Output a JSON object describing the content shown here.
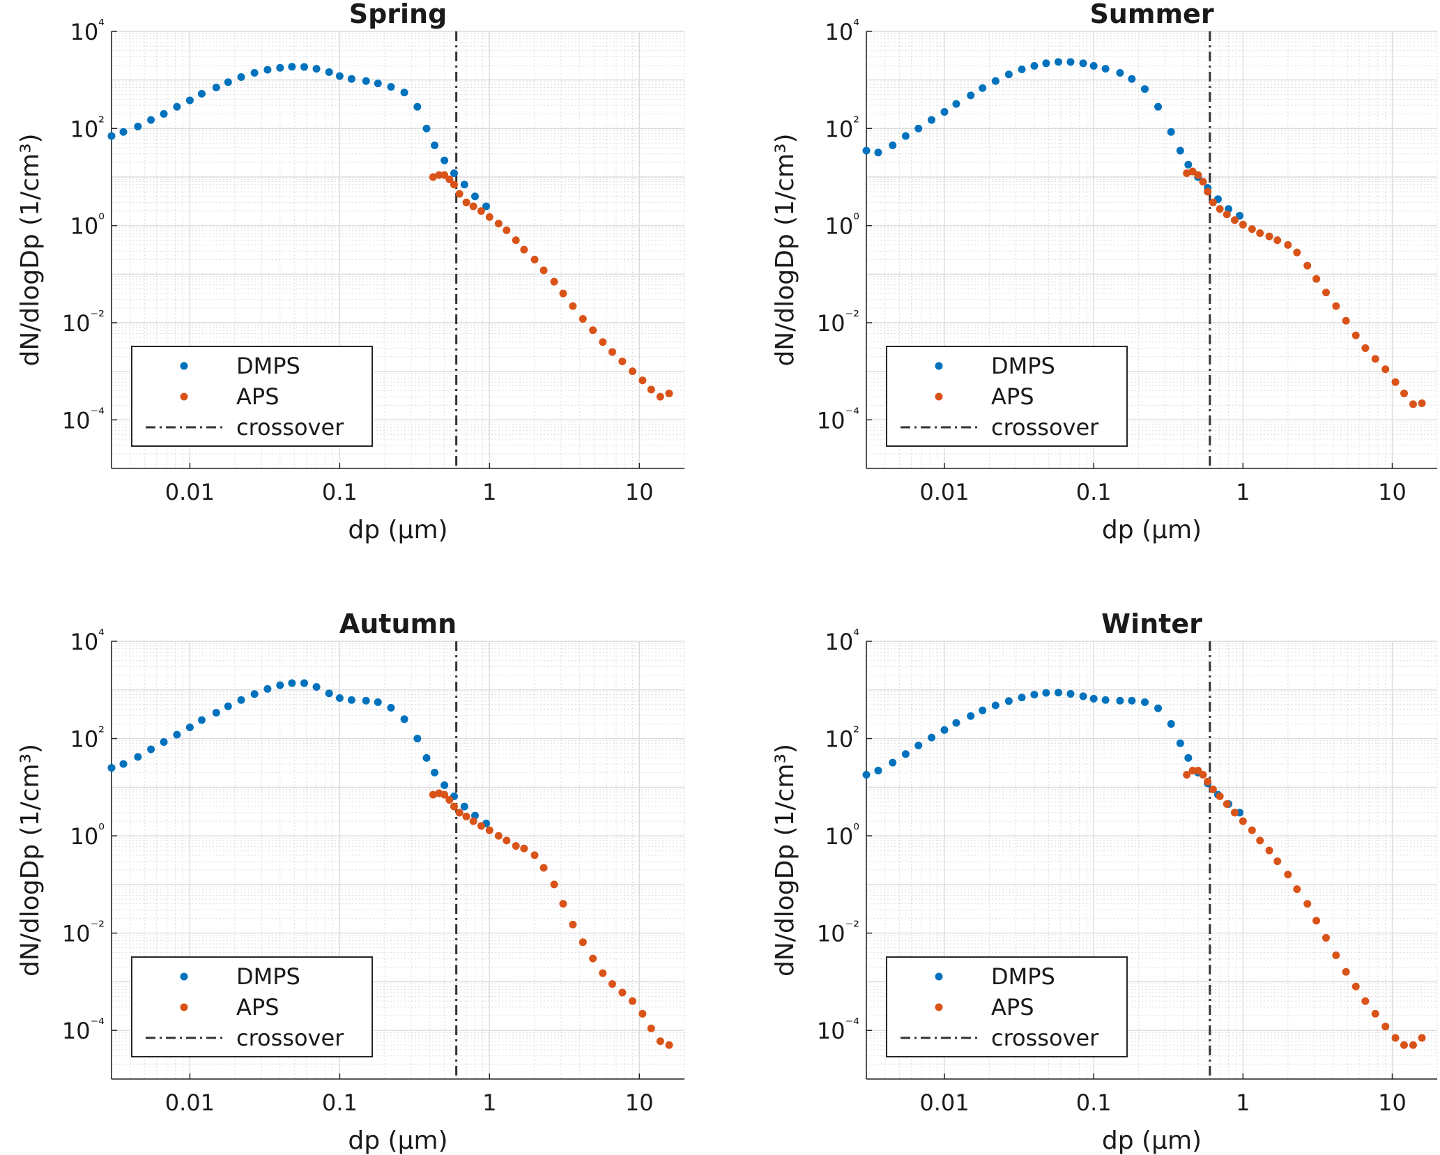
{
  "colors": {
    "dmps": "#0072BD",
    "aps": "#D95319",
    "crossover": "#333333",
    "grid": "#dcdcdc"
  },
  "chart_data": [
    {
      "type": "scatter",
      "title": "Spring",
      "xlabel": "dp (μm)",
      "ylabel": "dN/dlogDp (1/cm³)",
      "xscale": "log",
      "yscale": "log",
      "xlim": [
        0.003,
        20
      ],
      "ylim": [
        1e-05,
        10000
      ],
      "xticks": [
        "0.01",
        "0.1",
        "1",
        "10"
      ],
      "yticks": [
        "10⁴",
        "10²",
        "10⁰",
        "10⁻²",
        "10⁻⁴"
      ],
      "grid": true,
      "legend_position": "lower-left",
      "legend": [
        "DMPS",
        "APS",
        "crossover"
      ],
      "crossover_x": 0.6,
      "series": [
        {
          "name": "DMPS",
          "points": [
            [
              0.003,
              70
            ],
            [
              0.0036,
              85
            ],
            [
              0.0045,
              110
            ],
            [
              0.0055,
              150
            ],
            [
              0.0067,
              200
            ],
            [
              0.0082,
              280
            ],
            [
              0.01,
              380
            ],
            [
              0.012,
              520
            ],
            [
              0.015,
              700
            ],
            [
              0.018,
              900
            ],
            [
              0.022,
              1150
            ],
            [
              0.027,
              1400
            ],
            [
              0.033,
              1620
            ],
            [
              0.04,
              1780
            ],
            [
              0.048,
              1870
            ],
            [
              0.058,
              1850
            ],
            [
              0.07,
              1700
            ],
            [
              0.085,
              1450
            ],
            [
              0.1,
              1200
            ],
            [
              0.12,
              1050
            ],
            [
              0.15,
              950
            ],
            [
              0.18,
              850
            ],
            [
              0.22,
              720
            ],
            [
              0.27,
              550
            ],
            [
              0.33,
              280
            ],
            [
              0.38,
              100
            ],
            [
              0.43,
              45
            ],
            [
              0.5,
              22
            ],
            [
              0.58,
              12
            ],
            [
              0.68,
              7
            ],
            [
              0.8,
              4
            ],
            [
              0.95,
              2.5
            ]
          ]
        },
        {
          "name": "APS",
          "points": [
            [
              0.42,
              10
            ],
            [
              0.46,
              11
            ],
            [
              0.5,
              11
            ],
            [
              0.54,
              9
            ],
            [
              0.58,
              7
            ],
            [
              0.63,
              4.5
            ],
            [
              0.7,
              3
            ],
            [
              0.78,
              2.5
            ],
            [
              0.88,
              2
            ],
            [
              1,
              1.5
            ],
            [
              1.15,
              1.1
            ],
            [
              1.3,
              0.8
            ],
            [
              1.5,
              0.5
            ],
            [
              1.7,
              0.32
            ],
            [
              2,
              0.2
            ],
            [
              2.3,
              0.12
            ],
            [
              2.7,
              0.07
            ],
            [
              3.1,
              0.04
            ],
            [
              3.6,
              0.022
            ],
            [
              4.2,
              0.012
            ],
            [
              4.9,
              0.007
            ],
            [
              5.7,
              0.004
            ],
            [
              6.6,
              0.0025
            ],
            [
              7.7,
              0.0016
            ],
            [
              9,
              0.001
            ],
            [
              10.5,
              0.00065
            ],
            [
              12,
              0.00042
            ],
            [
              13.8,
              0.0003
            ],
            [
              15.8,
              0.00035
            ]
          ]
        }
      ]
    },
    {
      "type": "scatter",
      "title": "Summer",
      "xlabel": "dp (μm)",
      "ylabel": "dN/dlogDp (1/cm³)",
      "xscale": "log",
      "yscale": "log",
      "xlim": [
        0.003,
        20
      ],
      "ylim": [
        1e-05,
        10000
      ],
      "xticks": [
        "0.01",
        "0.1",
        "1",
        "10"
      ],
      "yticks": [
        "10⁴",
        "10²",
        "10⁰",
        "10⁻²",
        "10⁻⁴"
      ],
      "grid": true,
      "legend_position": "lower-left",
      "legend": [
        "DMPS",
        "APS",
        "crossover"
      ],
      "crossover_x": 0.6,
      "series": [
        {
          "name": "DMPS",
          "points": [
            [
              0.003,
              35
            ],
            [
              0.0036,
              32
            ],
            [
              0.0045,
              45
            ],
            [
              0.0055,
              70
            ],
            [
              0.0067,
              100
            ],
            [
              0.0082,
              150
            ],
            [
              0.01,
              220
            ],
            [
              0.012,
              320
            ],
            [
              0.015,
              480
            ],
            [
              0.018,
              680
            ],
            [
              0.022,
              950
            ],
            [
              0.027,
              1300
            ],
            [
              0.033,
              1650
            ],
            [
              0.04,
              1950
            ],
            [
              0.048,
              2200
            ],
            [
              0.058,
              2350
            ],
            [
              0.07,
              2350
            ],
            [
              0.085,
              2200
            ],
            [
              0.1,
              1950
            ],
            [
              0.12,
              1700
            ],
            [
              0.15,
              1400
            ],
            [
              0.18,
              1050
            ],
            [
              0.22,
              650
            ],
            [
              0.27,
              280
            ],
            [
              0.33,
              85
            ],
            [
              0.38,
              35
            ],
            [
              0.43,
              18
            ],
            [
              0.5,
              10
            ],
            [
              0.58,
              6
            ],
            [
              0.68,
              3.5
            ],
            [
              0.8,
              2.2
            ],
            [
              0.95,
              1.6
            ]
          ]
        },
        {
          "name": "APS",
          "points": [
            [
              0.42,
              12
            ],
            [
              0.46,
              13
            ],
            [
              0.5,
              11
            ],
            [
              0.54,
              8
            ],
            [
              0.58,
              5
            ],
            [
              0.63,
              3
            ],
            [
              0.7,
              2.2
            ],
            [
              0.78,
              1.7
            ],
            [
              0.88,
              1.3
            ],
            [
              1,
              1.05
            ],
            [
              1.15,
              0.85
            ],
            [
              1.3,
              0.7
            ],
            [
              1.5,
              0.6
            ],
            [
              1.7,
              0.5
            ],
            [
              2,
              0.4
            ],
            [
              2.3,
              0.28
            ],
            [
              2.7,
              0.15
            ],
            [
              3.1,
              0.08
            ],
            [
              3.6,
              0.042
            ],
            [
              4.2,
              0.022
            ],
            [
              4.9,
              0.011
            ],
            [
              5.7,
              0.0055
            ],
            [
              6.6,
              0.003
            ],
            [
              7.7,
              0.0018
            ],
            [
              9,
              0.0011
            ],
            [
              10.5,
              0.0006
            ],
            [
              12,
              0.00035
            ],
            [
              13.8,
              0.00021
            ],
            [
              15.8,
              0.00022
            ]
          ]
        }
      ]
    },
    {
      "type": "scatter",
      "title": "Autumn",
      "xlabel": "dp (μm)",
      "ylabel": "dN/dlogDp (1/cm³)",
      "xscale": "log",
      "yscale": "log",
      "xlim": [
        0.003,
        20
      ],
      "ylim": [
        1e-05,
        10000
      ],
      "xticks": [
        "0.01",
        "0.1",
        "1",
        "10"
      ],
      "yticks": [
        "10⁴",
        "10²",
        "10⁰",
        "10⁻²",
        "10⁻⁴"
      ],
      "grid": true,
      "legend_position": "lower-left",
      "legend": [
        "DMPS",
        "APS",
        "crossover"
      ],
      "crossover_x": 0.6,
      "series": [
        {
          "name": "DMPS",
          "points": [
            [
              0.003,
              25
            ],
            [
              0.0036,
              30
            ],
            [
              0.0045,
              42
            ],
            [
              0.0055,
              60
            ],
            [
              0.0067,
              85
            ],
            [
              0.0082,
              120
            ],
            [
              0.01,
              170
            ],
            [
              0.012,
              240
            ],
            [
              0.015,
              340
            ],
            [
              0.018,
              460
            ],
            [
              0.022,
              620
            ],
            [
              0.027,
              820
            ],
            [
              0.033,
              1050
            ],
            [
              0.04,
              1250
            ],
            [
              0.048,
              1380
            ],
            [
              0.058,
              1380
            ],
            [
              0.07,
              1150
            ],
            [
              0.085,
              850
            ],
            [
              0.1,
              680
            ],
            [
              0.12,
              620
            ],
            [
              0.15,
              600
            ],
            [
              0.18,
              560
            ],
            [
              0.22,
              430
            ],
            [
              0.27,
              250
            ],
            [
              0.33,
              100
            ],
            [
              0.38,
              40
            ],
            [
              0.43,
              20
            ],
            [
              0.5,
              11
            ],
            [
              0.58,
              6.5
            ],
            [
              0.68,
              4
            ],
            [
              0.8,
              2.6
            ],
            [
              0.95,
              1.8
            ]
          ]
        },
        {
          "name": "APS",
          "points": [
            [
              0.42,
              7
            ],
            [
              0.46,
              7.5
            ],
            [
              0.5,
              7
            ],
            [
              0.54,
              5.5
            ],
            [
              0.58,
              4
            ],
            [
              0.63,
              3
            ],
            [
              0.7,
              2.5
            ],
            [
              0.78,
              2
            ],
            [
              0.88,
              1.6
            ],
            [
              1,
              1.3
            ],
            [
              1.15,
              1
            ],
            [
              1.3,
              0.8
            ],
            [
              1.5,
              0.62
            ],
            [
              1.7,
              0.55
            ],
            [
              2,
              0.4
            ],
            [
              2.3,
              0.22
            ],
            [
              2.7,
              0.1
            ],
            [
              3.1,
              0.04
            ],
            [
              3.6,
              0.015
            ],
            [
              4.2,
              0.0065
            ],
            [
              4.9,
              0.003
            ],
            [
              5.7,
              0.0015
            ],
            [
              6.6,
              0.0009
            ],
            [
              7.7,
              0.0006
            ],
            [
              9,
              0.0004
            ],
            [
              10.5,
              0.00022
            ],
            [
              12,
              0.00011
            ],
            [
              13.8,
              6e-05
            ],
            [
              15.8,
              5e-05
            ]
          ]
        }
      ]
    },
    {
      "type": "scatter",
      "title": "Winter",
      "xlabel": "dp (μm)",
      "ylabel": "dN/dlogDp (1/cm³)",
      "xscale": "log",
      "yscale": "log",
      "xlim": [
        0.003,
        20
      ],
      "ylim": [
        1e-05,
        10000
      ],
      "xticks": [
        "0.01",
        "0.1",
        "1",
        "10"
      ],
      "yticks": [
        "10⁴",
        "10²",
        "10⁰",
        "10⁻²",
        "10⁻⁴"
      ],
      "grid": true,
      "legend_position": "lower-left",
      "legend": [
        "DMPS",
        "APS",
        "crossover"
      ],
      "crossover_x": 0.6,
      "series": [
        {
          "name": "DMPS",
          "points": [
            [
              0.003,
              18
            ],
            [
              0.0036,
              22
            ],
            [
              0.0045,
              32
            ],
            [
              0.0055,
              48
            ],
            [
              0.0067,
              72
            ],
            [
              0.0082,
              105
            ],
            [
              0.01,
              150
            ],
            [
              0.012,
              210
            ],
            [
              0.015,
              290
            ],
            [
              0.018,
              380
            ],
            [
              0.022,
              480
            ],
            [
              0.027,
              590
            ],
            [
              0.033,
              700
            ],
            [
              0.04,
              800
            ],
            [
              0.048,
              870
            ],
            [
              0.058,
              880
            ],
            [
              0.07,
              830
            ],
            [
              0.085,
              740
            ],
            [
              0.1,
              660
            ],
            [
              0.12,
              620
            ],
            [
              0.15,
              600
            ],
            [
              0.18,
              600
            ],
            [
              0.22,
              560
            ],
            [
              0.27,
              420
            ],
            [
              0.33,
              200
            ],
            [
              0.38,
              80
            ],
            [
              0.43,
              40
            ],
            [
              0.5,
              20
            ],
            [
              0.58,
              12
            ],
            [
              0.68,
              7
            ],
            [
              0.8,
              4.5
            ],
            [
              0.95,
              3
            ]
          ]
        },
        {
          "name": "APS",
          "points": [
            [
              0.42,
              18
            ],
            [
              0.46,
              22
            ],
            [
              0.5,
              22
            ],
            [
              0.54,
              18
            ],
            [
              0.58,
              13
            ],
            [
              0.63,
              9
            ],
            [
              0.7,
              6.5
            ],
            [
              0.78,
              4.5
            ],
            [
              0.88,
              3
            ],
            [
              1,
              2
            ],
            [
              1.15,
              1.3
            ],
            [
              1.3,
              0.8
            ],
            [
              1.5,
              0.5
            ],
            [
              1.7,
              0.3
            ],
            [
              2,
              0.16
            ],
            [
              2.3,
              0.08
            ],
            [
              2.7,
              0.04
            ],
            [
              3.1,
              0.018
            ],
            [
              3.6,
              0.008
            ],
            [
              4.2,
              0.0035
            ],
            [
              4.9,
              0.0016
            ],
            [
              5.7,
              0.0008
            ],
            [
              6.6,
              0.0004
            ],
            [
              7.7,
              0.00022
            ],
            [
              9,
              0.00012
            ],
            [
              10.5,
              7e-05
            ],
            [
              12,
              5e-05
            ],
            [
              13.8,
              5e-05
            ],
            [
              15.8,
              7e-05
            ]
          ]
        }
      ]
    }
  ]
}
